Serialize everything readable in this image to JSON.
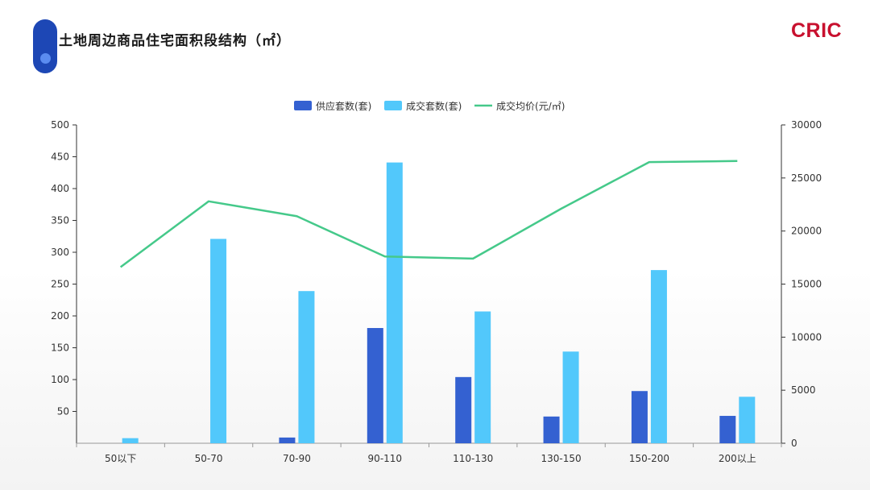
{
  "page": {
    "title": "土地周边商品住宅面积段结构（㎡）",
    "logo": "CRIC"
  },
  "colors": {
    "supply": "#3461d1",
    "sold": "#52c8fb",
    "price": "#45c98a",
    "badge": "#1d47b5",
    "logo": "#c8102e"
  },
  "chart_data": {
    "type": "bar",
    "title": "",
    "categories": [
      "50以下",
      "50-70",
      "70-90",
      "90-110",
      "110-130",
      "130-150",
      "150-200",
      "200以上"
    ],
    "series": [
      {
        "name": "供应套数(套)",
        "type": "bar",
        "axis": "left",
        "values": [
          0,
          0,
          9,
          181,
          104,
          42,
          82,
          43
        ]
      },
      {
        "name": "成交套数(套)",
        "type": "bar",
        "axis": "left",
        "values": [
          8,
          321,
          239,
          441,
          207,
          144,
          272,
          73
        ]
      },
      {
        "name": "成交均价(元/㎡)",
        "type": "line",
        "axis": "right",
        "values": [
          16600,
          22800,
          21400,
          17600,
          17400,
          22100,
          26500,
          26600
        ]
      }
    ],
    "y_left": {
      "min": 0,
      "max": 500,
      "ticks": [
        "50",
        "100",
        "150",
        "200",
        "250",
        "300",
        "350",
        "400",
        "450",
        "500"
      ]
    },
    "y_right": {
      "min": 0,
      "max": 30000,
      "ticks": [
        "0",
        "5000",
        "10000",
        "15000",
        "20000",
        "25000",
        "30000"
      ]
    },
    "grid": false,
    "legend_position": "top-center"
  }
}
